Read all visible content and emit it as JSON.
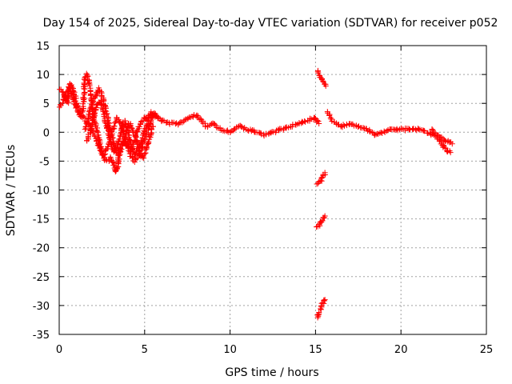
{
  "chart_data": {
    "type": "scatter",
    "title": "Day 154 of 2025, Sidereal Day-to-day VTEC variation (SDTVAR) for receiver p052",
    "xlabel": "GPS time / hours",
    "ylabel": "SDTVAR / TECUs",
    "xlim": [
      0,
      25
    ],
    "ylim": [
      -35,
      15
    ],
    "xticks": [
      0,
      5,
      10,
      15,
      20,
      25
    ],
    "yticks": [
      15,
      10,
      5,
      0,
      -5,
      -10,
      -15,
      -20,
      -25,
      -30,
      -35
    ],
    "grid": true,
    "marker": "+",
    "series": [
      {
        "name": "SDTVAR",
        "color": "#ff0000",
        "segments": [
          {
            "label": "early-trace-a",
            "points": [
              [
                0.0,
                7.5
              ],
              [
                0.2,
                7.0
              ],
              [
                0.35,
                6.0
              ],
              [
                0.5,
                5.0
              ],
              [
                0.6,
                8.5
              ],
              [
                0.75,
                8.0
              ],
              [
                0.9,
                6.5
              ],
              [
                1.0,
                5.0
              ],
              [
                1.1,
                4.5
              ],
              [
                1.2,
                3.5
              ],
              [
                1.3,
                2.5
              ],
              [
                1.4,
                4.0
              ],
              [
                1.5,
                9.5
              ],
              [
                1.6,
                10.0
              ],
              [
                1.7,
                9.5
              ],
              [
                1.8,
                7.0
              ],
              [
                1.9,
                5.0
              ],
              [
                2.0,
                3.0
              ],
              [
                2.1,
                1.5
              ],
              [
                2.2,
                0.5
              ],
              [
                2.3,
                -1.0
              ],
              [
                2.4,
                -2.5
              ],
              [
                2.5,
                -3.5
              ],
              [
                2.6,
                -4.5
              ],
              [
                2.8,
                -5.0
              ],
              [
                3.0,
                -4.5
              ],
              [
                3.2,
                -5.5
              ],
              [
                3.3,
                -7.0
              ],
              [
                3.4,
                -6.0
              ],
              [
                3.5,
                -4.0
              ],
              [
                3.6,
                -2.5
              ],
              [
                3.8,
                -1.5
              ],
              [
                4.0,
                -2.5
              ],
              [
                4.2,
                -4.0
              ],
              [
                4.4,
                -5.0
              ],
              [
                4.6,
                -4.5
              ],
              [
                4.8,
                -3.0
              ],
              [
                5.0,
                -1.0
              ],
              [
                5.2,
                0.5
              ],
              [
                5.4,
                2.0
              ],
              [
                5.6,
                3.0
              ],
              [
                5.8,
                2.5
              ]
            ]
          },
          {
            "label": "early-trace-b",
            "points": [
              [
                0.0,
                4.5
              ],
              [
                0.2,
                5.0
              ],
              [
                0.4,
                6.5
              ],
              [
                0.6,
                7.5
              ],
              [
                0.8,
                6.0
              ],
              [
                1.0,
                4.0
              ],
              [
                1.2,
                3.0
              ],
              [
                1.4,
                2.5
              ],
              [
                1.6,
                2.0
              ],
              [
                1.8,
                1.0
              ],
              [
                2.0,
                0.0
              ],
              [
                2.2,
                -1.5
              ],
              [
                2.4,
                -3.0
              ],
              [
                2.6,
                -4.0
              ],
              [
                2.8,
                -3.0
              ],
              [
                3.0,
                -1.0
              ],
              [
                3.2,
                1.0
              ],
              [
                3.4,
                2.5
              ],
              [
                3.6,
                1.5
              ],
              [
                3.8,
                -0.5
              ],
              [
                4.0,
                -2.0
              ],
              [
                4.2,
                -3.0
              ],
              [
                4.4,
                -1.5
              ],
              [
                4.6,
                0.5
              ],
              [
                4.8,
                2.0
              ],
              [
                5.0,
                2.5
              ]
            ]
          },
          {
            "label": "early-trace-c",
            "points": [
              [
                1.5,
                0.5
              ],
              [
                1.7,
                2.5
              ],
              [
                1.9,
                4.5
              ],
              [
                2.1,
                6.0
              ],
              [
                2.3,
                7.5
              ],
              [
                2.5,
                6.5
              ],
              [
                2.7,
                4.0
              ],
              [
                2.9,
                1.5
              ],
              [
                3.1,
                -1.0
              ],
              [
                3.3,
                -3.0
              ],
              [
                3.5,
                -4.0
              ],
              [
                3.7,
                -2.0
              ],
              [
                3.9,
                0.0
              ],
              [
                4.1,
                1.5
              ],
              [
                4.3,
                0.5
              ],
              [
                4.5,
                -1.0
              ],
              [
                4.7,
                -3.5
              ],
              [
                4.9,
                -4.5
              ],
              [
                5.1,
                -3.0
              ],
              [
                5.3,
                -1.0
              ],
              [
                5.5,
                1.0
              ]
            ]
          },
          {
            "label": "early-trace-d",
            "points": [
              [
                1.6,
                -1.5
              ],
              [
                1.8,
                0.0
              ],
              [
                2.0,
                2.5
              ],
              [
                2.2,
                4.5
              ],
              [
                2.4,
                5.5
              ],
              [
                2.6,
                3.5
              ],
              [
                2.8,
                1.0
              ],
              [
                3.0,
                -1.5
              ],
              [
                3.2,
                -3.5
              ],
              [
                3.4,
                -2.5
              ],
              [
                3.6,
                0.0
              ],
              [
                3.8,
                2.0
              ],
              [
                4.0,
                0.5
              ],
              [
                4.2,
                -2.0
              ],
              [
                4.4,
                -4.0
              ],
              [
                4.6,
                -3.0
              ],
              [
                4.8,
                -1.5
              ],
              [
                5.0,
                0.5
              ],
              [
                5.2,
                2.0
              ],
              [
                5.4,
                3.5
              ],
              [
                5.6,
                3.0
              ]
            ]
          },
          {
            "label": "main-trace",
            "points": [
              [
                5.0,
                2.5
              ],
              [
                5.5,
                3.0
              ],
              [
                6.0,
                2.0
              ],
              [
                6.5,
                1.5
              ],
              [
                7.0,
                1.5
              ],
              [
                7.5,
                2.5
              ],
              [
                8.0,
                3.0
              ],
              [
                8.3,
                2.0
              ],
              [
                8.6,
                1.0
              ],
              [
                9.0,
                1.5
              ],
              [
                9.5,
                0.5
              ],
              [
                10.0,
                0.0
              ],
              [
                10.5,
                1.0
              ],
              [
                11.0,
                0.5
              ],
              [
                11.5,
                0.0
              ],
              [
                12.0,
                -0.5
              ],
              [
                12.5,
                0.0
              ],
              [
                13.0,
                0.5
              ],
              [
                13.5,
                1.0
              ],
              [
                14.0,
                1.5
              ],
              [
                14.5,
                2.0
              ],
              [
                15.0,
                2.5
              ],
              [
                15.2,
                1.5
              ]
            ]
          },
          {
            "label": "late-trace",
            "points": [
              [
                15.7,
                3.5
              ],
              [
                16.0,
                2.0
              ],
              [
                16.5,
                1.0
              ],
              [
                17.0,
                1.5
              ],
              [
                17.5,
                1.0
              ],
              [
                18.0,
                0.5
              ],
              [
                18.5,
                -0.5
              ],
              [
                19.0,
                0.0
              ],
              [
                19.5,
                0.5
              ],
              [
                20.0,
                0.5
              ],
              [
                20.5,
                0.5
              ],
              [
                21.0,
                0.5
              ],
              [
                21.5,
                0.0
              ],
              [
                22.0,
                -0.5
              ],
              [
                22.3,
                -1.5
              ],
              [
                22.6,
                -3.0
              ],
              [
                22.9,
                -3.5
              ]
            ]
          },
          {
            "label": "late-trace-b",
            "points": [
              [
                21.8,
                0.5
              ],
              [
                22.1,
                -0.5
              ],
              [
                22.4,
                -1.0
              ],
              [
                22.7,
                -1.5
              ],
              [
                23.0,
                -2.0
              ]
            ]
          },
          {
            "label": "jump-1",
            "points": [
              [
                15.1,
                10.5
              ],
              [
                15.2,
                10.0
              ],
              [
                15.3,
                9.5
              ],
              [
                15.4,
                9.0
              ],
              [
                15.5,
                8.5
              ],
              [
                15.6,
                8.0
              ]
            ]
          },
          {
            "label": "jump-2",
            "points": [
              [
                15.1,
                -9.0
              ],
              [
                15.2,
                -8.7
              ],
              [
                15.3,
                -8.5
              ],
              [
                15.4,
                -8.0
              ],
              [
                15.5,
                -7.5
              ],
              [
                15.55,
                -7.0
              ]
            ]
          },
          {
            "label": "jump-3",
            "points": [
              [
                15.1,
                -16.5
              ],
              [
                15.2,
                -16.0
              ],
              [
                15.3,
                -15.5
              ],
              [
                15.4,
                -15.2
              ],
              [
                15.5,
                -14.7
              ],
              [
                15.55,
                -14.5
              ]
            ]
          },
          {
            "label": "jump-4",
            "points": [
              [
                15.1,
                -32.0
              ],
              [
                15.2,
                -31.5
              ],
              [
                15.25,
                -31.0
              ],
              [
                15.3,
                -30.5
              ],
              [
                15.35,
                -30.0
              ],
              [
                15.4,
                -29.8
              ],
              [
                15.5,
                -29.3
              ],
              [
                15.55,
                -29.0
              ]
            ]
          }
        ]
      }
    ]
  }
}
